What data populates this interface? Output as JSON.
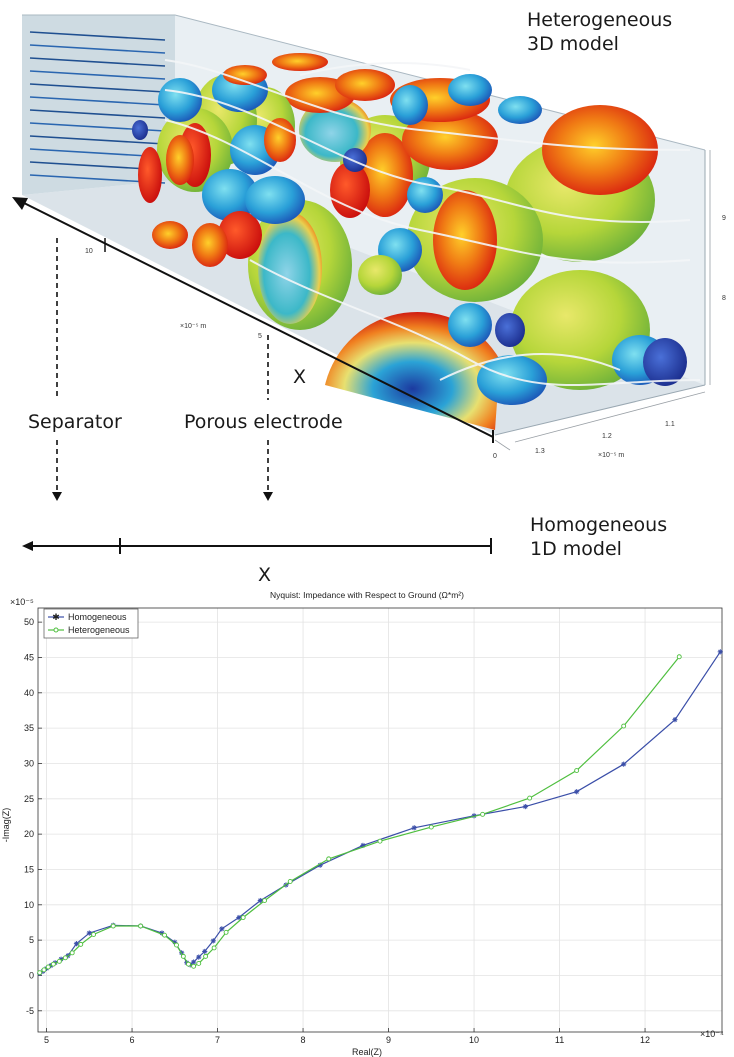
{
  "diagram": {
    "label_3d": "Heterogeneous\n3D model",
    "label_1d": "Homogeneous\n1D model",
    "separator": "Separator",
    "porous": "Porous electrode",
    "x_top": "X",
    "x_bottom": "X",
    "axis_ticks": {
      "x10": "10",
      "x5": "5",
      "x0": "0",
      "unit_mid": "×10⁻⁵ m",
      "y13": "1.3",
      "y12": "1.2",
      "y11": "1.1",
      "unit_y": "×10⁻⁵ m",
      "z9": "9",
      "z8": "8"
    }
  },
  "chart_data": {
    "type": "line",
    "title": "Nyquist: Impedance with Respect to Ground (Ω*m²)",
    "xlabel": "Real(Z)",
    "ylabel": "-Imag(Z)",
    "x_multiplier": "×10⁻⁴",
    "y_multiplier": "×10⁻⁵",
    "xlim": [
      4.9,
      12.9
    ],
    "ylim": [
      -8,
      52
    ],
    "x_ticks": [
      5,
      6,
      7,
      8,
      9,
      10,
      11,
      12
    ],
    "y_ticks": [
      -5,
      0,
      5,
      10,
      15,
      20,
      25,
      30,
      35,
      40,
      45,
      50
    ],
    "grid": true,
    "legend_position": "top-left",
    "series": [
      {
        "name": "Homogeneous",
        "color": "#3a4ea8",
        "marker": "star",
        "points": [
          [
            4.92,
            0.3
          ],
          [
            4.96,
            0.6
          ],
          [
            5.0,
            1.0
          ],
          [
            5.05,
            1.4
          ],
          [
            5.1,
            1.8
          ],
          [
            5.17,
            2.3
          ],
          [
            5.25,
            2.8
          ],
          [
            5.35,
            4.5
          ],
          [
            5.5,
            6.0
          ],
          [
            5.78,
            7.1
          ],
          [
            6.1,
            7.0
          ],
          [
            6.35,
            6.0
          ],
          [
            6.5,
            4.7
          ],
          [
            6.58,
            3.2
          ],
          [
            6.64,
            1.8
          ],
          [
            6.68,
            1.5
          ],
          [
            6.72,
            1.9
          ],
          [
            6.78,
            2.6
          ],
          [
            6.85,
            3.4
          ],
          [
            6.95,
            4.9
          ],
          [
            7.05,
            6.6
          ],
          [
            7.25,
            8.2
          ],
          [
            7.5,
            10.6
          ],
          [
            7.8,
            12.8
          ],
          [
            8.2,
            15.6
          ],
          [
            8.7,
            18.4
          ],
          [
            9.3,
            20.9
          ],
          [
            10.0,
            22.6
          ],
          [
            10.6,
            23.9
          ],
          [
            11.2,
            26.0
          ],
          [
            11.75,
            29.9
          ],
          [
            12.35,
            36.2
          ],
          [
            12.88,
            45.8
          ]
        ]
      },
      {
        "name": "Heterogeneous",
        "color": "#4fbf3f",
        "marker": "circle",
        "points": [
          [
            4.92,
            0.4
          ],
          [
            4.97,
            0.8
          ],
          [
            5.02,
            1.2
          ],
          [
            5.08,
            1.6
          ],
          [
            5.15,
            2.0
          ],
          [
            5.22,
            2.5
          ],
          [
            5.3,
            3.2
          ],
          [
            5.4,
            4.4
          ],
          [
            5.55,
            5.8
          ],
          [
            5.78,
            7.0
          ],
          [
            6.1,
            7.0
          ],
          [
            6.38,
            5.7
          ],
          [
            6.52,
            4.3
          ],
          [
            6.6,
            2.7
          ],
          [
            6.66,
            1.6
          ],
          [
            6.72,
            1.3
          ],
          [
            6.78,
            1.7
          ],
          [
            6.86,
            2.7
          ],
          [
            6.96,
            3.9
          ],
          [
            7.1,
            6.1
          ],
          [
            7.3,
            8.2
          ],
          [
            7.55,
            10.6
          ],
          [
            7.85,
            13.3
          ],
          [
            8.3,
            16.5
          ],
          [
            8.9,
            19.0
          ],
          [
            9.5,
            21.0
          ],
          [
            10.1,
            22.8
          ],
          [
            10.65,
            25.1
          ],
          [
            11.2,
            29.0
          ],
          [
            11.75,
            35.3
          ],
          [
            12.4,
            45.1
          ]
        ]
      }
    ]
  }
}
